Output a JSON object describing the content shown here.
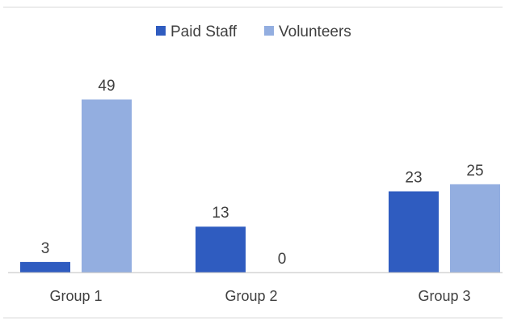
{
  "chart_data": {
    "type": "bar",
    "title": "",
    "xlabel": "",
    "ylabel": "",
    "categories": [
      "Group 1",
      "Group 2",
      "Group 3"
    ],
    "series": [
      {
        "name": "Paid Staff",
        "values": [
          3,
          13,
          23
        ],
        "data_labels": [
          "3",
          "13",
          "23"
        ],
        "color": "#2f5cc0"
      },
      {
        "name": "Volunteers",
        "values": [
          49,
          0,
          25
        ],
        "data_labels": [
          "49",
          "0",
          "25"
        ],
        "color": "#93aee0"
      }
    ],
    "ylim": [
      0,
      49
    ],
    "grid": false,
    "legend_position": "top-center",
    "colors": {
      "border": "#d9d9d9",
      "axis": "#bfbfbf",
      "text": "#404040"
    }
  }
}
